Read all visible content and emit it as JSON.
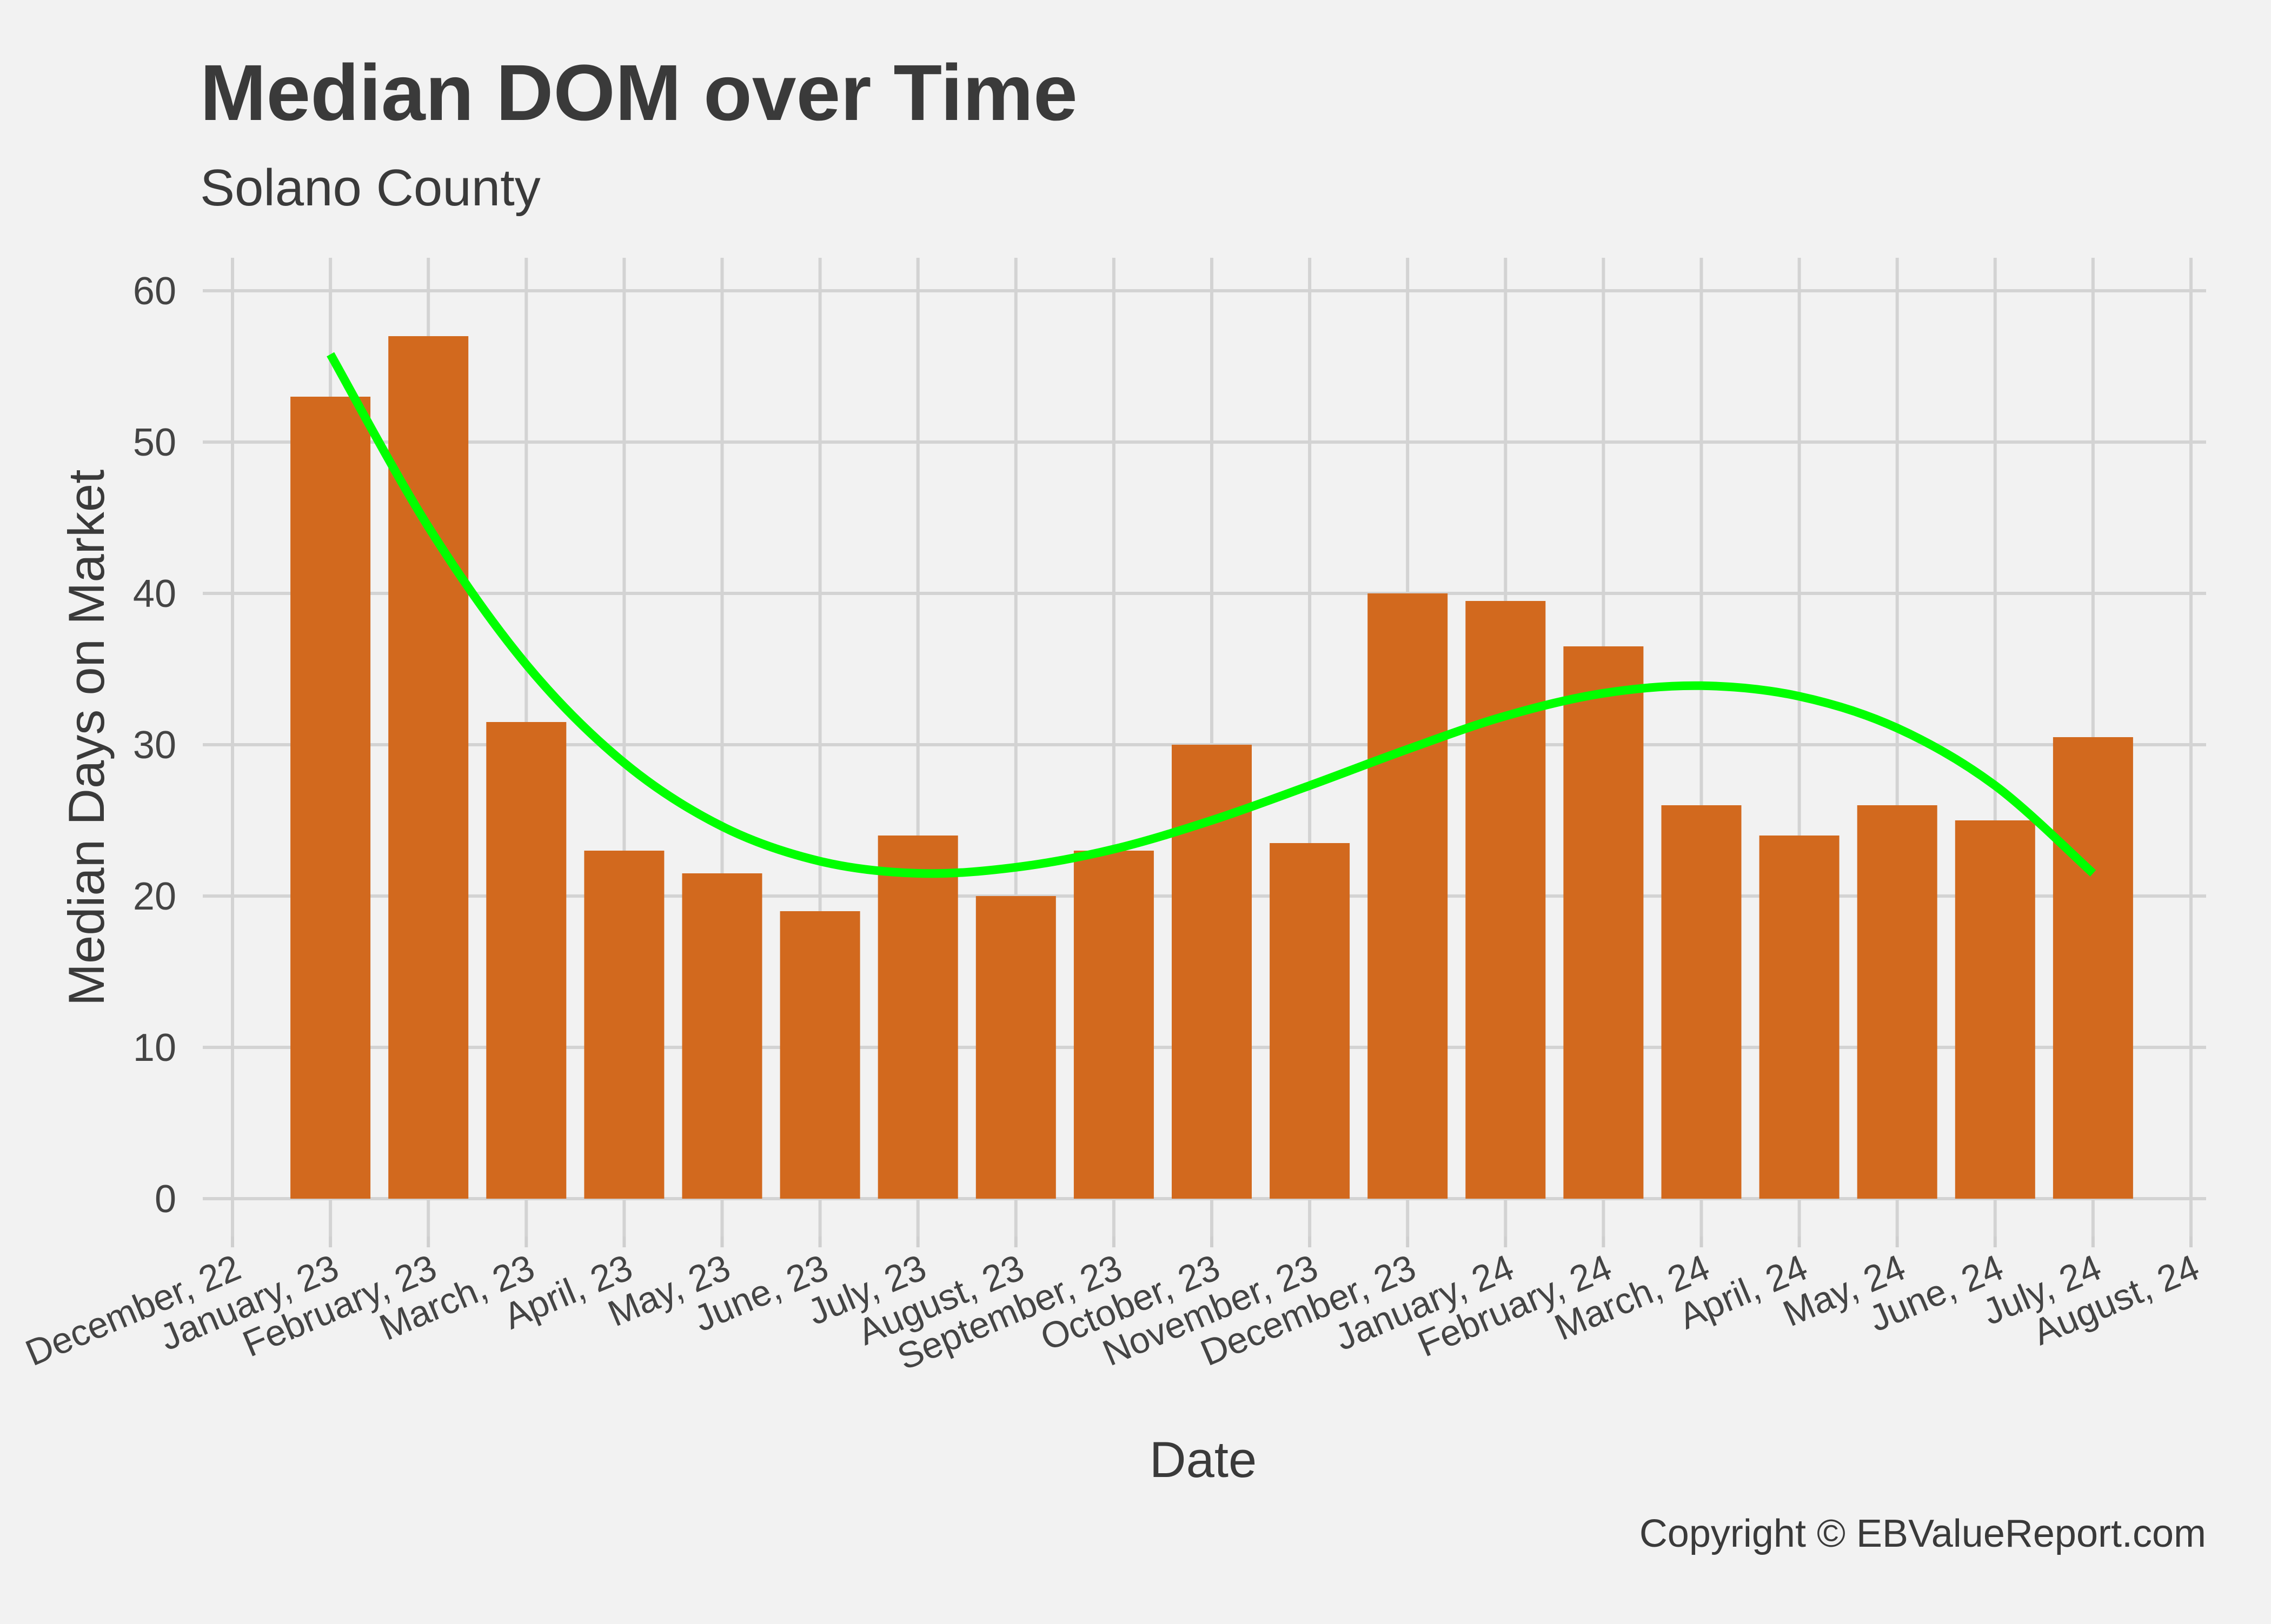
{
  "chart_data": {
    "type": "bar",
    "title": "Median DOM over Time",
    "subtitle": "Solano County",
    "xlabel": "Date",
    "ylabel": "Median Days on Market",
    "caption": "Copyright  © EBValueReport.com",
    "ylim": [
      0,
      62
    ],
    "yticks": [
      0,
      10,
      20,
      30,
      40,
      50,
      60
    ],
    "x_ticks": [
      "December, 22",
      "January, 23",
      "February, 23",
      "March, 23",
      "April, 23",
      "May, 23",
      "June, 23",
      "July, 23",
      "August, 23",
      "September, 23",
      "October, 23",
      "November, 23",
      "December, 23",
      "January, 24",
      "February, 24",
      "March, 24",
      "April, 24",
      "May, 24",
      "June, 24",
      "July, 24",
      "August, 24"
    ],
    "categories": [
      "January, 23",
      "February, 23",
      "March, 23",
      "April, 23",
      "May, 23",
      "June, 23",
      "July, 23",
      "August, 23",
      "September, 23",
      "October, 23",
      "November, 23",
      "December, 23",
      "January, 24",
      "February, 24",
      "March, 24",
      "April, 24",
      "May, 24",
      "June, 24",
      "July, 24"
    ],
    "values": [
      53,
      57,
      31.5,
      23,
      21.5,
      19,
      24,
      20,
      23,
      30,
      23.5,
      40,
      39.5,
      36.5,
      26,
      24,
      26,
      25,
      30.5
    ],
    "trend": [
      55.8,
      44.4,
      35.3,
      28.8,
      24.6,
      22.3,
      21.5,
      21.9,
      23.1,
      25.0,
      27.3,
      29.7,
      31.9,
      33.4,
      33.9,
      33.2,
      31.1,
      27.3,
      21.5
    ],
    "grid": true,
    "legend": "none",
    "colors": {
      "bar": "#d2691e",
      "trend": "#00ff00",
      "background": "#f2f2f2",
      "grid": "#d3d3d3"
    }
  }
}
